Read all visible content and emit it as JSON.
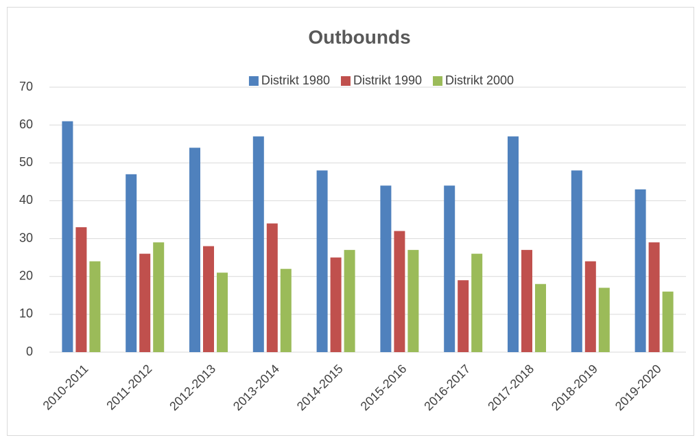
{
  "chart_data": {
    "type": "bar",
    "title": "Outbounds",
    "categories": [
      "2010-2011",
      "2011-2012",
      "2012-2013",
      "2013-2014",
      "2014-2015",
      "2015-2016",
      "2016-2017",
      "2017-2018",
      "2018-2019",
      "2019-2020"
    ],
    "series": [
      {
        "name": "Distrikt 1980",
        "color": "#4f81bd",
        "values": [
          61,
          47,
          54,
          57,
          48,
          44,
          44,
          57,
          48,
          43
        ]
      },
      {
        "name": "Distrikt 1990",
        "color": "#c0504d",
        "values": [
          33,
          26,
          28,
          34,
          25,
          32,
          19,
          27,
          24,
          29
        ]
      },
      {
        "name": "Distrikt 2000",
        "color": "#9bbb59",
        "values": [
          24,
          29,
          21,
          22,
          27,
          27,
          26,
          18,
          17,
          16
        ]
      }
    ],
    "ylim": [
      0,
      70
    ],
    "yticks": [
      0,
      10,
      20,
      30,
      40,
      50,
      60,
      70
    ],
    "grid": true,
    "legend": "top"
  }
}
